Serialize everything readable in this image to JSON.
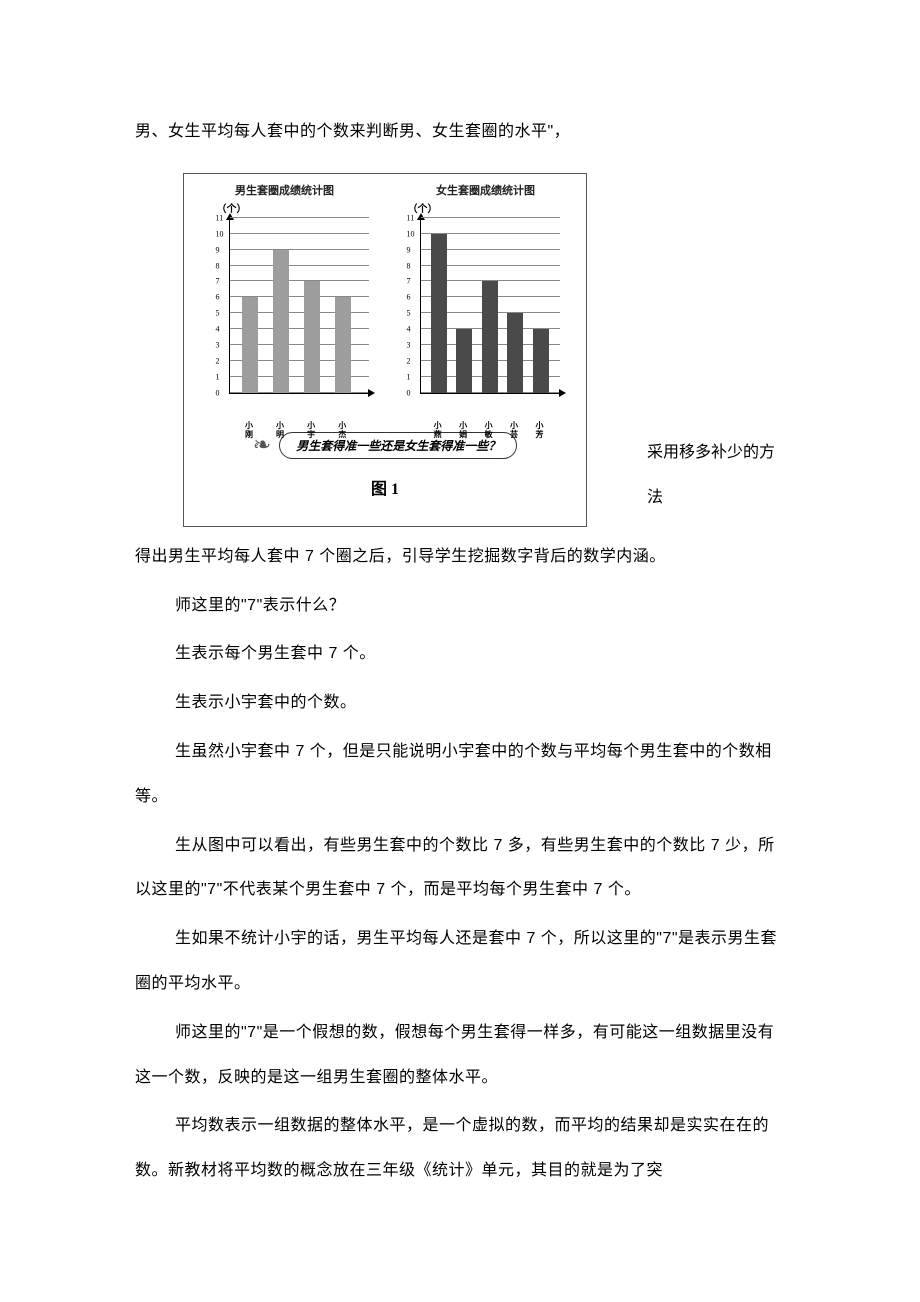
{
  "intro": "男、女生平均每人套中的个数来判断男、女生套圈的水平\"，",
  "chart": {
    "boys_title": "男生套圈成绩统计图",
    "girls_title": "女生套圈成绩统计图",
    "y_unit": "（个）",
    "y_max": 11,
    "y_ticks": [
      0,
      1,
      2,
      3,
      4,
      5,
      6,
      7,
      8,
      9,
      10,
      11
    ],
    "boys": {
      "labels": [
        "小刚",
        "小明",
        "小宇",
        "小杰"
      ],
      "values": [
        6,
        9,
        7,
        6
      ],
      "color": "#9d9d9d"
    },
    "girls": {
      "labels": [
        "小燕",
        "小娟",
        "小敏",
        "小芸",
        "小芳"
      ],
      "values": [
        10,
        4,
        7,
        5,
        4
      ],
      "color": "#4a4a4a"
    },
    "question": "男生套得准一些还是女生套得准一些？",
    "caption": "图 1"
  },
  "after_figure": "采用移多补少的方法",
  "p1": "得出男生平均每人套中 7 个圈之后，引导学生挖掘数字背后的数学内涵。",
  "p2": "师这里的\"7\"表示什么？",
  "p3": "生表示每个男生套中 7 个。",
  "p4": "生表示小宇套中的个数。",
  "p5": "生虽然小宇套中 7 个，但是只能说明小宇套中的个数与平均每个男生套中的个数相等。",
  "p6": "生从图中可以看出，有些男生套中的个数比 7 多，有些男生套中的个数比 7 少，所以这里的\"7\"不代表某个男生套中 7 个，而是平均每个男生套中 7 个。",
  "p7": "生如果不统计小宇的话，男生平均每人还是套中 7 个，所以这里的\"7\"是表示男生套圈的平均水平。",
  "p8": "师这里的\"7\"是一个假想的数，假想每个男生套得一样多，有可能这一组数据里没有这一个数，反映的是这一组男生套圈的整体水平。",
  "p9": "平均数表示一组数据的整体水平，是一个虚拟的数，而平均的结果却是实实在在的数。新教材将平均数的概念放在三年级《统计》单元，其目的就是为了突"
}
